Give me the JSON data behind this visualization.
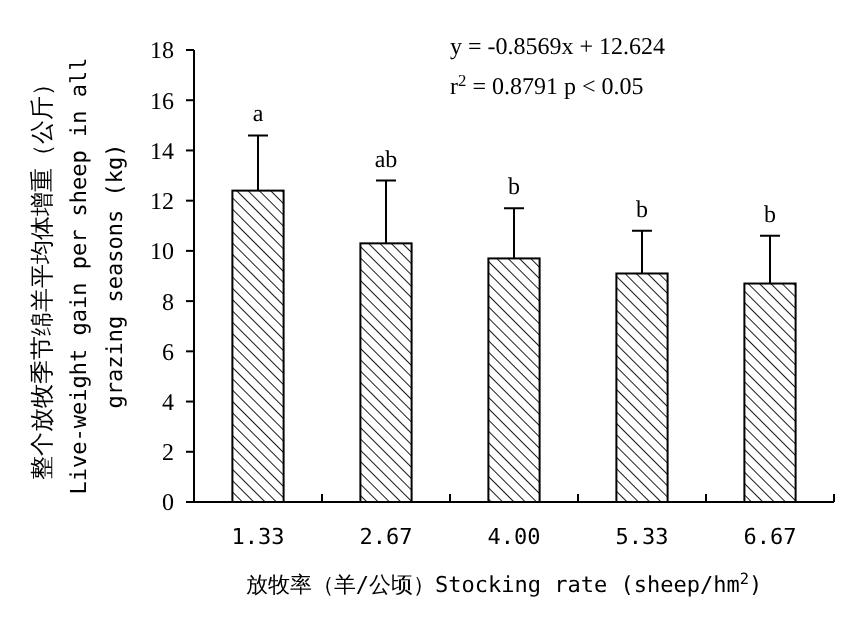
{
  "chart_data": {
    "type": "bar",
    "xlabel": "放牧率（羊/公顷）Stocking rate (sheep/hm$^{2}$)",
    "ylabel": "整个放牧季节绵羊平均体增重（公斤）\nLive-weight gain per sheep in all\ngrazing seasons (kg)",
    "categories": [
      "1.33",
      "2.67",
      "4.00",
      "5.33",
      "6.67"
    ],
    "values": [
      12.4,
      10.3,
      9.7,
      9.1,
      8.7
    ],
    "errors": [
      [
        12.4,
        14.6
      ],
      [
        10.3,
        12.8
      ],
      [
        9.7,
        11.7
      ],
      [
        9.1,
        10.8
      ],
      [
        8.7,
        10.6
      ]
    ],
    "color": "#000000",
    "ylim": [
      0,
      18
    ],
    "yticks": [
      0,
      2,
      4,
      6,
      8,
      10,
      12,
      14,
      16,
      18
    ],
    "grid": false,
    "value_labels": [
      "a",
      "ab",
      "b",
      "b",
      "b"
    ],
    "annotations": [
      "y = -0.8569x + 12.624",
      "r$^{2}$ = 0.8791  p < 0.05"
    ]
  }
}
